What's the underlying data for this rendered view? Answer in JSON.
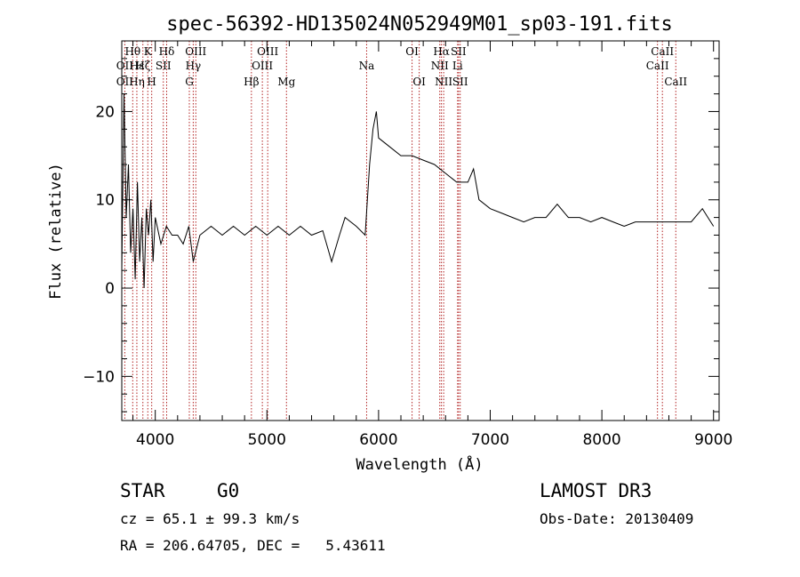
{
  "chart_data": {
    "type": "line",
    "title": "spec-56392-HD135024N052949M01_sp03-191.fits",
    "xlabel": "Wavelength (Å)",
    "ylabel": "Flux (relative)",
    "xlim": [
      3700,
      9050
    ],
    "ylim": [
      -15,
      28
    ],
    "xticks": [
      4000,
      5000,
      6000,
      7000,
      8000,
      9000
    ],
    "yticks": [
      -10,
      0,
      10,
      20
    ],
    "xtick_labels": [
      "4000",
      "5000",
      "6000",
      "7000",
      "8000",
      "9000"
    ],
    "ytick_labels": [
      "−10",
      "0",
      "10",
      "20"
    ],
    "series": [
      {
        "points": [
          [
            3700,
            2
          ],
          [
            3720,
            22
          ],
          [
            3740,
            8
          ],
          [
            3760,
            14
          ],
          [
            3780,
            4
          ],
          [
            3800,
            9
          ],
          [
            3820,
            1
          ],
          [
            3840,
            12
          ],
          [
            3860,
            3
          ],
          [
            3880,
            8
          ],
          [
            3900,
            0
          ],
          [
            3920,
            9
          ],
          [
            3940,
            6
          ],
          [
            3960,
            10
          ],
          [
            3980,
            3
          ],
          [
            4000,
            8
          ],
          [
            4050,
            5
          ],
          [
            4100,
            7
          ],
          [
            4150,
            6
          ],
          [
            4200,
            6
          ],
          [
            4250,
            5
          ],
          [
            4300,
            7
          ],
          [
            4340,
            3
          ],
          [
            4400,
            6
          ],
          [
            4500,
            7
          ],
          [
            4600,
            6
          ],
          [
            4700,
            7
          ],
          [
            4800,
            6
          ],
          [
            4900,
            7
          ],
          [
            5000,
            6
          ],
          [
            5100,
            7
          ],
          [
            5200,
            6
          ],
          [
            5300,
            7
          ],
          [
            5400,
            6
          ],
          [
            5500,
            6.5
          ],
          [
            5580,
            3
          ],
          [
            5650,
            6
          ],
          [
            5700,
            8
          ],
          [
            5800,
            7
          ],
          [
            5880,
            6
          ],
          [
            5920,
            14
          ],
          [
            5950,
            18
          ],
          [
            5980,
            20
          ],
          [
            6000,
            17
          ],
          [
            6100,
            16
          ],
          [
            6200,
            15
          ],
          [
            6300,
            15
          ],
          [
            6400,
            14.5
          ],
          [
            6500,
            14
          ],
          [
            6600,
            13
          ],
          [
            6700,
            12
          ],
          [
            6800,
            12
          ],
          [
            6850,
            13.5
          ],
          [
            6900,
            10
          ],
          [
            7000,
            9
          ],
          [
            7100,
            8.5
          ],
          [
            7200,
            8
          ],
          [
            7300,
            7.5
          ],
          [
            7400,
            8
          ],
          [
            7500,
            8
          ],
          [
            7600,
            9.5
          ],
          [
            7700,
            8
          ],
          [
            7800,
            8
          ],
          [
            7900,
            7.5
          ],
          [
            8000,
            8
          ],
          [
            8100,
            7.5
          ],
          [
            8200,
            7
          ],
          [
            8300,
            7.5
          ],
          [
            8400,
            7.5
          ],
          [
            8500,
            7.5
          ],
          [
            8600,
            7.5
          ],
          [
            8700,
            7.5
          ],
          [
            8800,
            7.5
          ],
          [
            8900,
            9
          ],
          [
            8950,
            8
          ],
          [
            9000,
            7
          ]
        ]
      }
    ],
    "spectral_lines": [
      {
        "label": "Hθ",
        "wl": 3798,
        "row": 1
      },
      {
        "label": "OII",
        "wl": 3727,
        "row": 2
      },
      {
        "label": "OII",
        "wl": 3727,
        "row": 3
      },
      {
        "label": "Hε",
        "wl": 3835,
        "row": 2
      },
      {
        "label": "Hη",
        "wl": 3835,
        "row": 3
      },
      {
        "label": "K",
        "wl": 3933,
        "row": 1
      },
      {
        "label": "Hζ",
        "wl": 3889,
        "row": 2
      },
      {
        "label": "H",
        "wl": 3968,
        "row": 3
      },
      {
        "label": "SII",
        "wl": 4072,
        "row": 2
      },
      {
        "label": "Hδ",
        "wl": 4102,
        "row": 1
      },
      {
        "label": "OIII",
        "wl": 4363,
        "row": 1
      },
      {
        "label": "Hγ",
        "wl": 4340,
        "row": 2
      },
      {
        "label": "G",
        "wl": 4305,
        "row": 3
      },
      {
        "label": "Hβ",
        "wl": 4861,
        "row": 3
      },
      {
        "label": "OIII",
        "wl": 5007,
        "row": 1
      },
      {
        "label": "OIII",
        "wl": 4959,
        "row": 2
      },
      {
        "label": "Mg",
        "wl": 5175,
        "row": 3
      },
      {
        "label": "Na",
        "wl": 5893,
        "row": 2
      },
      {
        "label": "OI",
        "wl": 6300,
        "row": 1
      },
      {
        "label": "OI",
        "wl": 6364,
        "row": 3
      },
      {
        "label": "Hα",
        "wl": 6563,
        "row": 1
      },
      {
        "label": "NII",
        "wl": 6548,
        "row": 2
      },
      {
        "label": "NII",
        "wl": 6583,
        "row": 3
      },
      {
        "label": "SII",
        "wl": 6716,
        "row": 1
      },
      {
        "label": "Li",
        "wl": 6708,
        "row": 2
      },
      {
        "label": "SII",
        "wl": 6731,
        "row": 3
      },
      {
        "label": "CaII",
        "wl": 8542,
        "row": 1
      },
      {
        "label": "CaII",
        "wl": 8498,
        "row": 2
      },
      {
        "label": "CaII",
        "wl": 8662,
        "row": 3
      }
    ]
  },
  "info": {
    "class_label": "STAR",
    "subclass": "G0",
    "survey": "LAMOST DR3",
    "cz": "cz = 65.1 ± 99.3 km/s",
    "obs_date": "Obs-Date: 20130409",
    "coords": "RA = 206.64705, DEC =   5.43611"
  },
  "colors": {
    "line": "#000000",
    "marker": "#b22222",
    "axes": "#000000"
  }
}
